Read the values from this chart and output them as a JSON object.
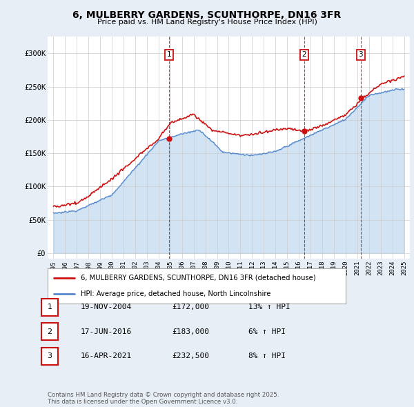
{
  "title_line1": "6, MULBERRY GARDENS, SCUNTHORPE, DN16 3FR",
  "title_line2": "Price paid vs. HM Land Registry's House Price Index (HPI)",
  "background_color": "#e8eef5",
  "plot_bg_color": "#ffffff",
  "legend_label_red": "6, MULBERRY GARDENS, SCUNTHORPE, DN16 3FR (detached house)",
  "legend_label_blue": "HPI: Average price, detached house, North Lincolnshire",
  "transactions": [
    {
      "label": "1",
      "date": "19-NOV-2004",
      "price": "£172,000",
      "hpi": "13% ↑ HPI",
      "year": 2004.88,
      "price_val": 172000
    },
    {
      "label": "2",
      "date": "17-JUN-2016",
      "price": "£183,000",
      "hpi": "6% ↑ HPI",
      "year": 2016.46,
      "price_val": 183000
    },
    {
      "label": "3",
      "date": "16-APR-2021",
      "price": "£232,500",
      "hpi": "8% ↑ HPI",
      "year": 2021.29,
      "price_val": 232500
    }
  ],
  "footer": "Contains HM Land Registry data © Crown copyright and database right 2025.\nThis data is licensed under the Open Government Licence v3.0.",
  "yticks": [
    0,
    50000,
    100000,
    150000,
    200000,
    250000,
    300000
  ],
  "ytick_labels": [
    "£0",
    "£50K",
    "£100K",
    "£150K",
    "£200K",
    "£250K",
    "£300K"
  ],
  "ylim": [
    -8000,
    325000
  ],
  "xlim": [
    1994.5,
    2025.5
  ]
}
